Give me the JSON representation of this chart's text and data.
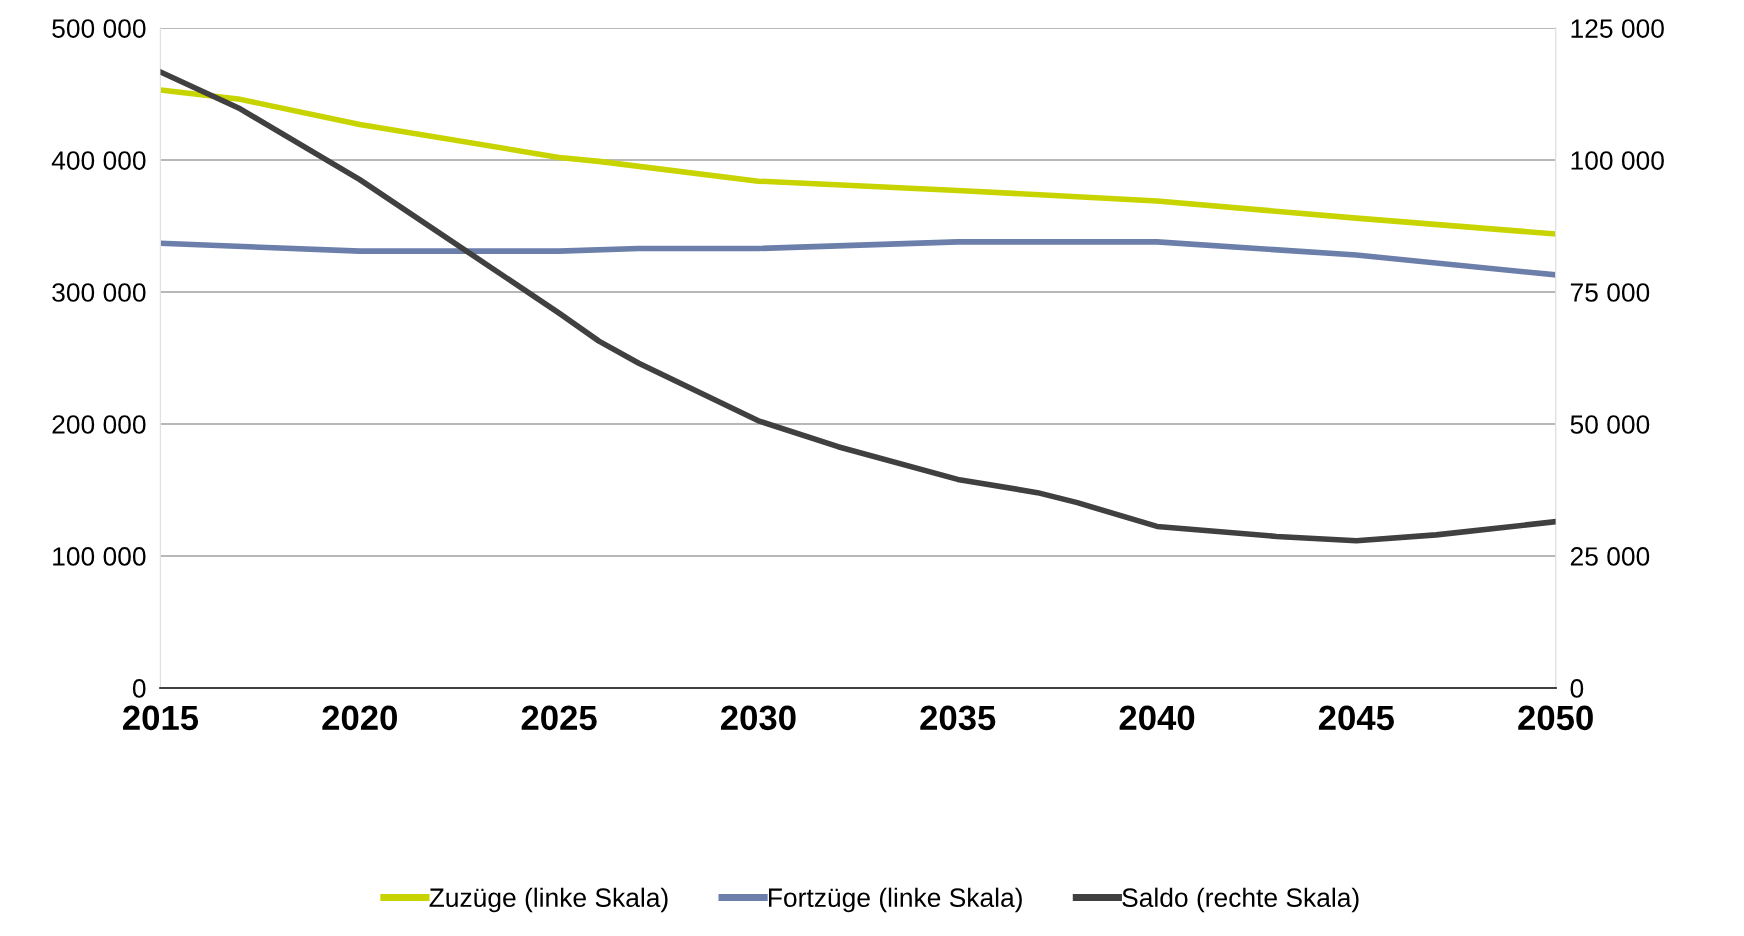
{
  "chart_data": {
    "type": "line",
    "xlim": [
      2015,
      2050
    ],
    "xticks": [
      2015,
      2020,
      2025,
      2030,
      2035,
      2040,
      2045,
      2050
    ],
    "ylim": [
      0,
      500000
    ],
    "yticks": [
      {
        "value": 0,
        "label": "0"
      },
      {
        "value": 100000,
        "label": "100 000"
      },
      {
        "value": 200000,
        "label": "200 000"
      },
      {
        "value": 300000,
        "label": "300 000"
      },
      {
        "value": 400000,
        "label": "400 000"
      },
      {
        "value": 500000,
        "label": "500 000"
      }
    ],
    "y2lim": [
      0,
      125000
    ],
    "y2ticks": [
      {
        "value": 0,
        "label": "0"
      },
      {
        "value": 25000,
        "label": "25 000"
      },
      {
        "value": 50000,
        "label": "50 000"
      },
      {
        "value": 75000,
        "label": "75 000"
      },
      {
        "value": 100000,
        "label": "100 000"
      },
      {
        "value": 125000,
        "label": "125 000"
      }
    ],
    "grid": "y",
    "legend": "bottom",
    "marker": "none",
    "line_style": "solid",
    "series": [
      {
        "name": "Zuzüge (linke Skala)",
        "color": "#c8d400",
        "x": [
          2015,
          2017,
          2020,
          2025,
          2026,
          2030,
          2035,
          2040,
          2045,
          2050
        ],
        "values": [
          453000,
          446000,
          427000,
          402000,
          399000,
          384000,
          377000,
          369000,
          356000,
          344000
        ]
      },
      {
        "name": "Fortzüge (linke Skala)",
        "color": "#6b7faa",
        "x": [
          2015,
          2020,
          2022,
          2025,
          2027,
          2030,
          2035,
          2038,
          2040,
          2045,
          2050
        ],
        "values": [
          337000,
          331000,
          331000,
          331000,
          333000,
          333000,
          338000,
          338000,
          338000,
          328000,
          313000
        ]
      },
      {
        "name": "Saldo (rechte Skala)",
        "color": "#404040",
        "axis": "y2",
        "x": [
          2015,
          2017,
          2020,
          2025,
          2026,
          2027,
          2030,
          2032,
          2035,
          2037,
          2038,
          2040,
          2043,
          2045,
          2047,
          2050
        ],
        "values": [
          116700,
          109700,
          96300,
          71000,
          65700,
          61500,
          50600,
          45700,
          39500,
          37000,
          35100,
          30600,
          28700,
          27900,
          29000,
          31500
        ]
      }
    ]
  }
}
